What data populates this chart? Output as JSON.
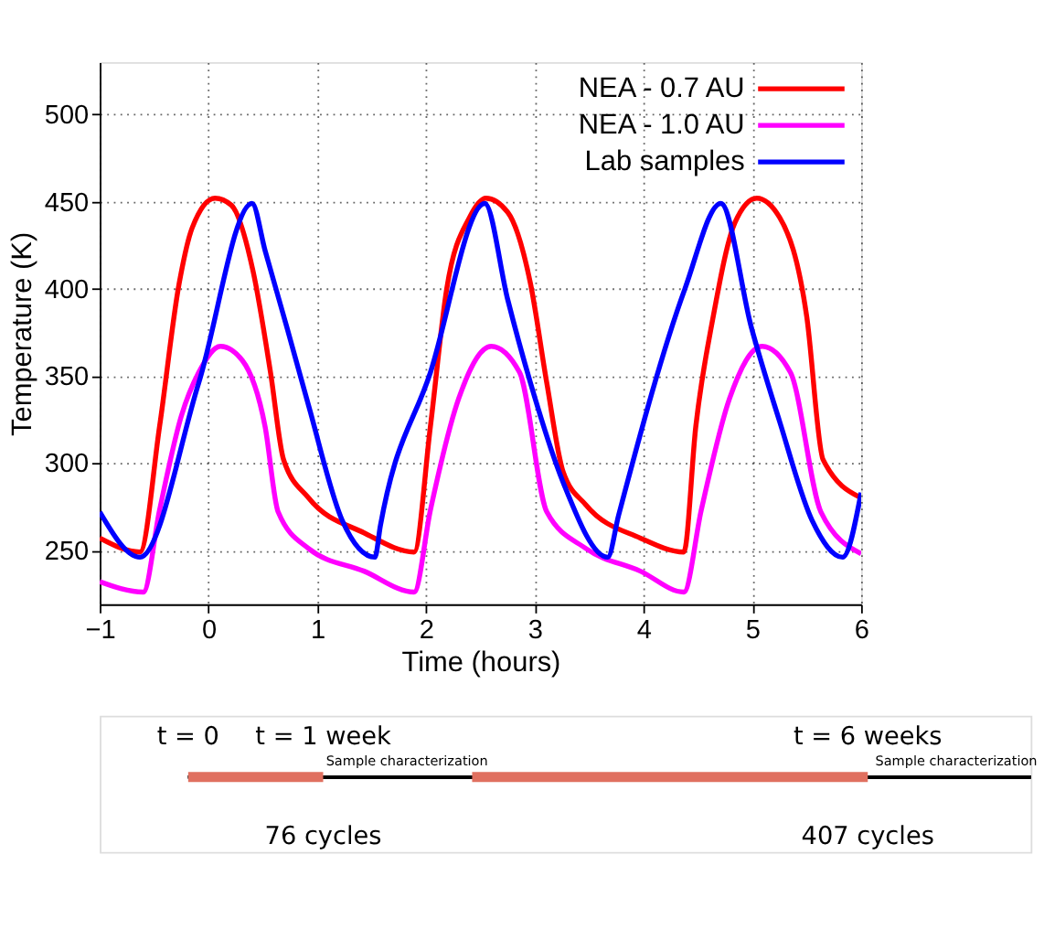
{
  "chart_data": [
    {
      "type": "line",
      "xlabel": "Time (hours)",
      "ylabel": "Temperature (K)",
      "xlim": [
        -1,
        6
      ],
      "xticks": [
        -1,
        0,
        1,
        2,
        3,
        4,
        5,
        6
      ],
      "ylim": [
        219,
        530
      ],
      "yticks": [
        250,
        300,
        350,
        400,
        450,
        500
      ],
      "grid": true,
      "legend": "top right",
      "marker": "none",
      "line_style": "solid",
      "series": [
        {
          "name": "NEA - 0.7 AU",
          "color": "#ff0000",
          "x": [
            -1,
            -0.63,
            -0.45,
            -0.27,
            -0.15,
            0.06,
            0.21,
            0.41,
            0.57,
            0.69,
            0.92,
            1.43,
            1.89,
            2.04,
            2.19,
            2.4,
            2.55,
            2.75,
            2.96,
            3.11,
            3.26,
            3.47,
            3.97,
            4.37,
            4.48,
            4.64,
            4.84,
            5.04,
            5.25,
            5.5,
            5.65,
            6.0
          ],
          "values": [
            257,
            249,
            321,
            403,
            435,
            452,
            448,
            410,
            352,
            302,
            280,
            260,
            249,
            321,
            400,
            441,
            452,
            444,
            403,
            346,
            295,
            276,
            257,
            249,
            321,
            384,
            438,
            452,
            441,
            384,
            302,
            280
          ]
        },
        {
          "name": "NEA - 1.0 AU",
          "color": "#ff00ff",
          "x": [
            -1,
            -0.6,
            -0.45,
            -0.25,
            -0.09,
            0.11,
            0.31,
            0.52,
            0.64,
            0.92,
            1.43,
            1.89,
            2.04,
            2.3,
            2.6,
            2.86,
            3.11,
            3.47,
            3.97,
            4.37,
            4.53,
            4.79,
            5.09,
            5.35,
            5.63,
            6.0
          ],
          "values": [
            232,
            226,
            273,
            327,
            352,
            367,
            359,
            321,
            272,
            251,
            238,
            226,
            273,
            337,
            367,
            352,
            272,
            251,
            238,
            226,
            273,
            337,
            367,
            352,
            272,
            248
          ]
        },
        {
          "name": "Lab samples",
          "color": "#0000ff",
          "x": [
            -1,
            -0.63,
            -0.09,
            0.4,
            0.52,
            0.72,
            0.92,
            1.23,
            1.53,
            1.58,
            2.04,
            2.54,
            2.75,
            2.96,
            3.26,
            3.67,
            3.77,
            4.38,
            4.71,
            4.99,
            5.25,
            5.55,
            5.83,
            6.0
          ],
          "values": [
            272,
            246,
            346,
            449,
            422,
            378,
            333,
            267,
            246,
            264,
            352,
            449,
            394,
            346,
            289,
            246,
            270,
            400,
            449,
            378,
            324,
            267,
            246,
            283
          ]
        }
      ]
    },
    {
      "type": "other",
      "annotations": [
        "t = 0",
        "t = 1 week",
        "t = 6 weeks",
        "Sample characterization",
        "Sample characterization",
        "76 cycles",
        "407 cycles"
      ]
    }
  ]
}
